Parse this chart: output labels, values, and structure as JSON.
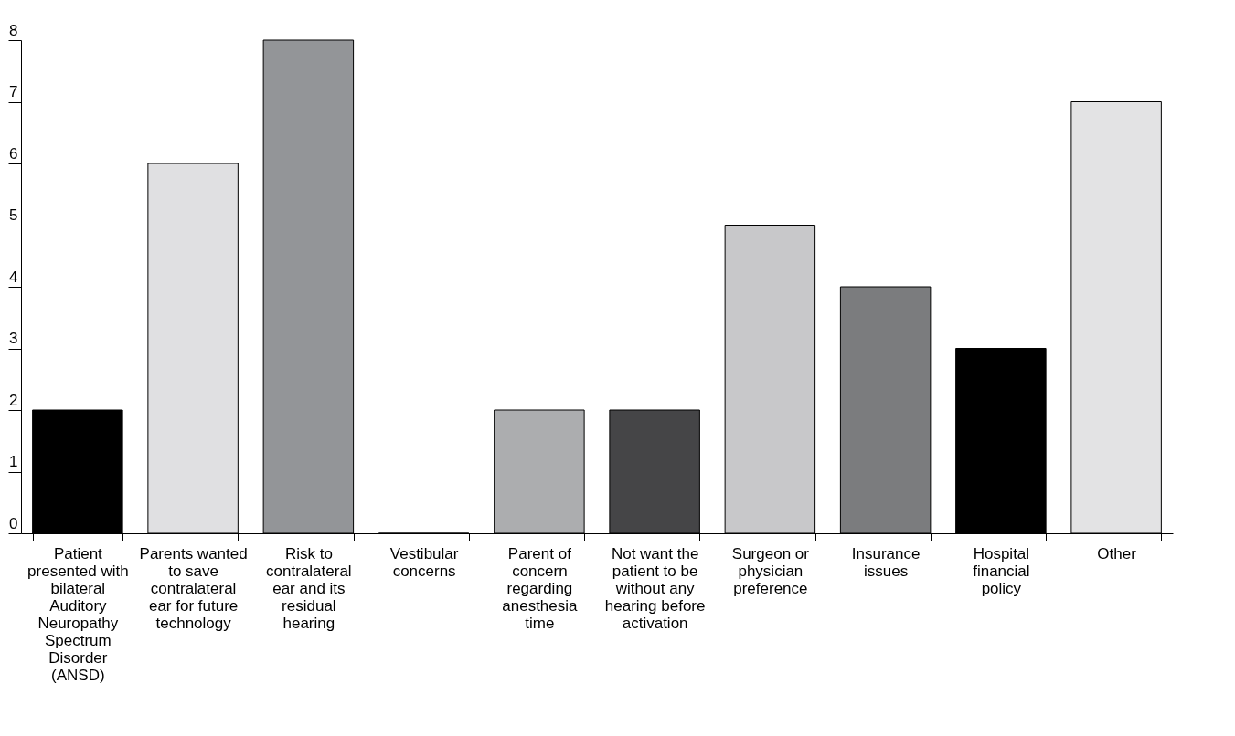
{
  "chart_data": {
    "type": "bar",
    "categories": [
      "Patient presented with bilateral Auditory Neuropathy Spectrum Disorder (ANSD)",
      "Parents wanted to save contralateral ear for future technology",
      "Risk to contralateral ear and its residual hearing",
      "Vestibular concerns",
      "Parent of concern regarding anesthesia time",
      "Not want the patient to be without any hearing before activation",
      "Surgeon or physician preference",
      "Insurance issues",
      "Hospital financial policy",
      "Other"
    ],
    "values": [
      2,
      6,
      8,
      0,
      2,
      2,
      5,
      4,
      3,
      7
    ],
    "colors": [
      "#000000",
      "#e0e0e2",
      "#939598",
      "#000000",
      "#acadaf",
      "#454547",
      "#c8c8ca",
      "#7b7c7e",
      "#000000",
      "#e3e3e4"
    ],
    "ylim": [
      0,
      8
    ],
    "yticks": [
      0,
      1,
      2,
      3,
      4,
      5,
      6,
      7,
      8
    ],
    "grid": false
  }
}
